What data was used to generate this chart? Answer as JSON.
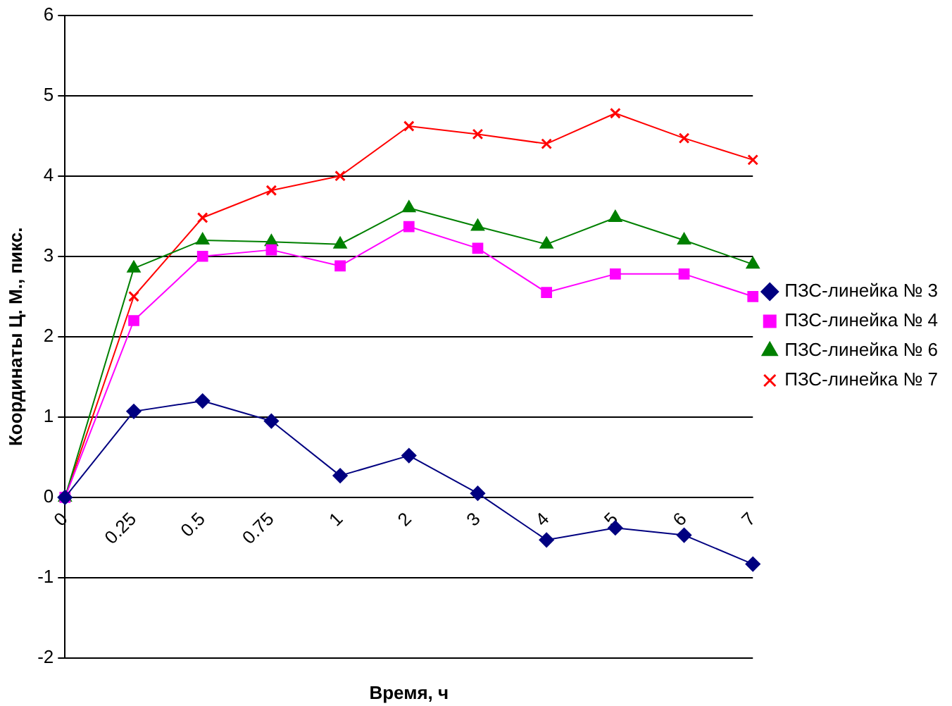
{
  "chart_data": {
    "type": "line",
    "xlabel": "Время, ч",
    "ylabel": "Координаты Ц. М., пикс.",
    "categories": [
      "0",
      "0.25",
      "0.5",
      "0.75",
      "1",
      "2",
      "3",
      "4",
      "5",
      "6",
      "7"
    ],
    "series": [
      {
        "name": "ПЗС-линейка № 3",
        "color": "#000080",
        "marker": "diamond",
        "values": [
          0,
          1.07,
          1.2,
          0.95,
          0.27,
          0.52,
          0.05,
          -0.53,
          -0.38,
          -0.47,
          -0.83
        ]
      },
      {
        "name": "ПЗС-линейка № 4",
        "color": "#ff00ff",
        "marker": "square",
        "values": [
          0,
          2.2,
          3.0,
          3.08,
          2.88,
          3.37,
          3.1,
          2.55,
          2.78,
          2.78,
          2.5
        ]
      },
      {
        "name": "ПЗС-линейка № 6",
        "color": "#008000",
        "marker": "triangle",
        "values": [
          0,
          2.85,
          3.2,
          3.18,
          3.15,
          3.6,
          3.37,
          3.15,
          3.48,
          3.2,
          2.9
        ]
      },
      {
        "name": "ПЗС-линейка № 7",
        "color": "#ff0000",
        "marker": "cross",
        "values": [
          0,
          2.5,
          3.48,
          3.82,
          4.0,
          4.62,
          4.52,
          4.4,
          4.78,
          4.47,
          4.2
        ]
      }
    ],
    "ylim": [
      -2,
      6
    ],
    "yticks": [
      -2,
      -1,
      0,
      1,
      2,
      3,
      4,
      5,
      6
    ],
    "grid": "y",
    "legend": "right"
  }
}
